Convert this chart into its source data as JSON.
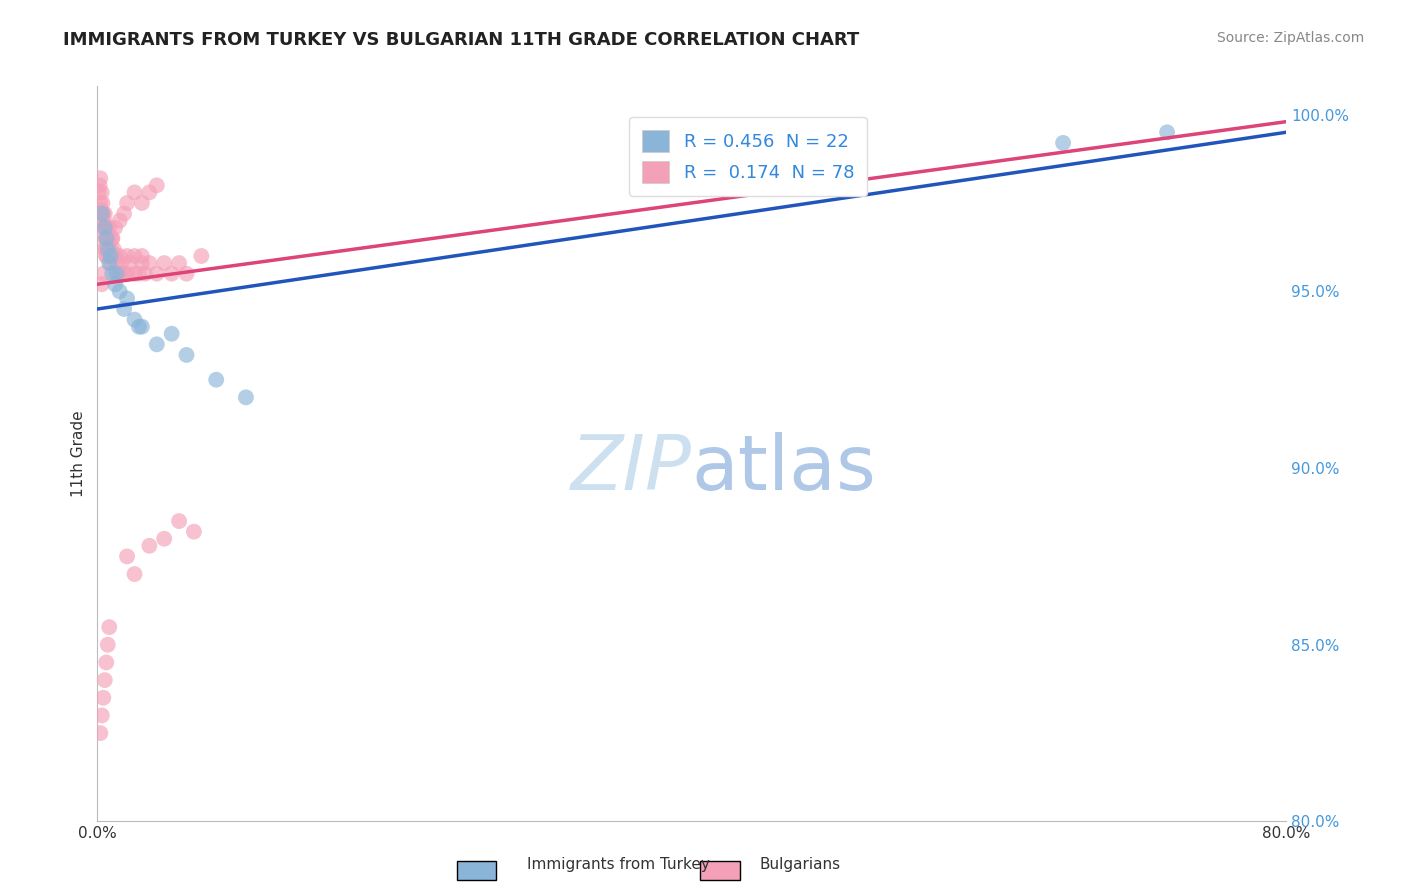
{
  "title": "IMMIGRANTS FROM TURKEY VS BULGARIAN 11TH GRADE CORRELATION CHART",
  "source": "Source: ZipAtlas.com",
  "ylabel": "11th Grade",
  "xmin": 0.0,
  "xmax": 80.0,
  "ymin": 80.0,
  "ymax": 100.8,
  "yticks": [
    80.0,
    85.0,
    90.0,
    95.0,
    100.0
  ],
  "blue_R": 0.456,
  "blue_N": 22,
  "pink_R": 0.174,
  "pink_N": 78,
  "blue_color": "#8ab4d8",
  "pink_color": "#f4a0b8",
  "blue_line_color": "#2255bb",
  "pink_line_color": "#dd4477",
  "title_color": "#222222",
  "source_color": "#888888",
  "watermark_color": "#cce0f0",
  "legend_label_color": "#3388dd",
  "blue_x": [
    0.3,
    0.5,
    0.6,
    0.7,
    0.8,
    0.9,
    1.0,
    1.2,
    1.5,
    1.8,
    2.0,
    2.5,
    3.0,
    4.0,
    5.0,
    6.0,
    8.0,
    10.0,
    65.0,
    72.0,
    1.3,
    2.8
  ],
  "blue_y": [
    97.2,
    96.8,
    96.5,
    96.2,
    95.8,
    96.0,
    95.5,
    95.2,
    95.0,
    94.5,
    94.8,
    94.2,
    94.0,
    93.5,
    93.8,
    93.2,
    92.5,
    92.0,
    99.2,
    99.5,
    95.5,
    94.0
  ],
  "pink_x": [
    0.1,
    0.15,
    0.2,
    0.2,
    0.25,
    0.3,
    0.3,
    0.35,
    0.4,
    0.4,
    0.45,
    0.5,
    0.5,
    0.5,
    0.55,
    0.6,
    0.6,
    0.65,
    0.7,
    0.75,
    0.8,
    0.8,
    0.9,
    0.9,
    1.0,
    1.0,
    1.1,
    1.2,
    1.3,
    1.4,
    1.5,
    1.5,
    1.6,
    1.8,
    2.0,
    2.0,
    2.2,
    2.5,
    2.5,
    2.8,
    3.0,
    3.0,
    3.2,
    3.5,
    4.0,
    4.5,
    5.0,
    5.5,
    6.0,
    7.0,
    0.3,
    0.4,
    0.5,
    0.6,
    0.7,
    0.8,
    1.0,
    1.2,
    1.5,
    1.8,
    2.0,
    2.5,
    3.0,
    3.5,
    4.0,
    0.2,
    0.3,
    0.4,
    2.0,
    2.5,
    3.5,
    4.5,
    5.5,
    6.5,
    0.5,
    0.6,
    0.7,
    0.8
  ],
  "pink_y": [
    97.8,
    98.0,
    97.5,
    98.2,
    97.3,
    97.0,
    97.8,
    97.5,
    97.2,
    96.8,
    97.0,
    96.5,
    97.2,
    96.2,
    96.8,
    96.5,
    96.0,
    96.8,
    96.5,
    96.2,
    96.5,
    96.0,
    96.2,
    95.8,
    96.5,
    96.0,
    96.2,
    96.0,
    95.8,
    95.5,
    96.0,
    95.5,
    95.8,
    95.5,
    96.0,
    95.5,
    95.8,
    95.5,
    96.0,
    95.5,
    95.8,
    96.0,
    95.5,
    95.8,
    95.5,
    95.8,
    95.5,
    95.8,
    95.5,
    96.0,
    95.2,
    95.5,
    96.2,
    96.0,
    96.5,
    96.8,
    96.5,
    96.8,
    97.0,
    97.2,
    97.5,
    97.8,
    97.5,
    97.8,
    98.0,
    82.5,
    83.0,
    83.5,
    87.5,
    87.0,
    87.8,
    88.0,
    88.5,
    88.2,
    84.0,
    84.5,
    85.0,
    85.5
  ],
  "blue_line_x0": 0.0,
  "blue_line_y0": 94.5,
  "blue_line_x1": 80.0,
  "blue_line_y1": 99.5,
  "pink_line_x0": 0.0,
  "pink_line_y0": 95.2,
  "pink_line_x1": 80.0,
  "pink_line_y1": 99.8
}
